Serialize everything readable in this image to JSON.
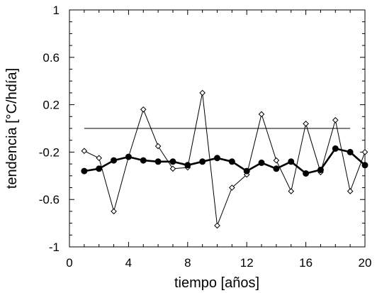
{
  "chart_data": {
    "type": "line",
    "xlabel": "tiempo [años]",
    "ylabel": "tendencia  [°C/hdía]",
    "xlim": [
      0,
      20
    ],
    "ylim": [
      -1,
      1
    ],
    "xticks": [
      0,
      4,
      8,
      12,
      16,
      20
    ],
    "yticks": [
      -1,
      -0.6,
      -0.2,
      0.2,
      0.6,
      1
    ],
    "xtick_labels": [
      "0",
      "4",
      "8",
      "12",
      "16",
      "20"
    ],
    "ytick_labels": [
      "-1",
      "-0.6",
      "-0.2",
      "0.2",
      "0.6",
      "1"
    ],
    "grid": false,
    "reference_line": {
      "y": 0.0,
      "x": [
        1,
        19
      ]
    },
    "series": [
      {
        "marker": "open-diamond",
        "line": "thin",
        "x": [
          1,
          2,
          3,
          4,
          5,
          6,
          7,
          8,
          9,
          10,
          11,
          12,
          13,
          14,
          15,
          16,
          17,
          18,
          19,
          20
        ],
        "y": [
          -0.19,
          -0.25,
          -0.7,
          -0.24,
          0.16,
          -0.15,
          -0.34,
          -0.33,
          0.3,
          -0.82,
          -0.5,
          -0.39,
          0.12,
          -0.27,
          -0.53,
          0.04,
          -0.37,
          0.07,
          -0.53,
          -0.2
        ]
      },
      {
        "marker": "filled-circle",
        "line": "thick",
        "x": [
          1,
          2,
          3,
          4,
          5,
          6,
          7,
          8,
          9,
          10,
          11,
          12,
          13,
          14,
          15,
          16,
          17,
          18,
          19,
          20
        ],
        "y": [
          -0.36,
          -0.34,
          -0.27,
          -0.24,
          -0.27,
          -0.28,
          -0.28,
          -0.31,
          -0.28,
          -0.25,
          -0.28,
          -0.36,
          -0.29,
          -0.34,
          -0.28,
          -0.38,
          -0.35,
          -0.17,
          -0.2,
          -0.31
        ]
      }
    ]
  }
}
